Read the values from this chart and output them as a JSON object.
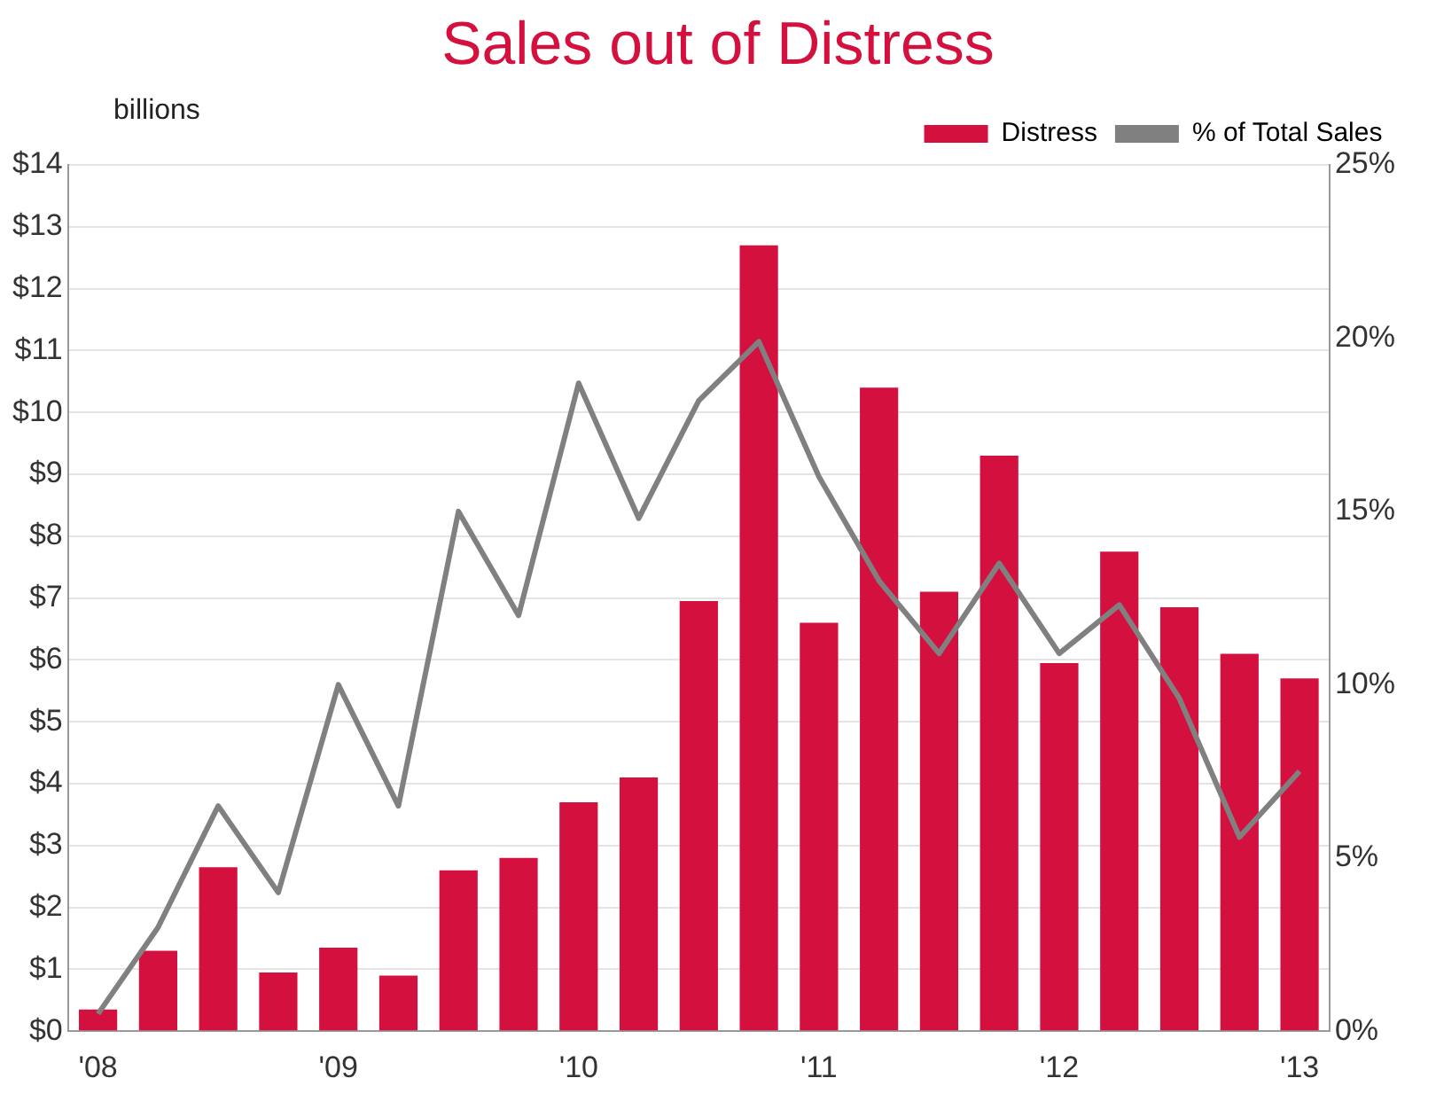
{
  "chart_data": {
    "type": "bar",
    "title": "Sales out of Distress",
    "ylabel": "billions",
    "categories": [
      "'08",
      null,
      null,
      null,
      "'09",
      null,
      null,
      null,
      "'10",
      null,
      null,
      null,
      "'11",
      null,
      null,
      null,
      "'12",
      null,
      null,
      null,
      "'13"
    ],
    "series": [
      {
        "name": "Distress",
        "color": "#d4103f",
        "values": [
          0.35,
          1.3,
          2.65,
          0.95,
          1.35,
          0.9,
          2.6,
          2.8,
          3.7,
          4.1,
          6.95,
          12.7,
          6.6,
          10.4,
          7.1,
          9.3,
          5.95,
          7.75,
          6.85,
          6.1,
          5.7
        ]
      },
      {
        "name": "% of Total Sales",
        "type": "line",
        "axis": "y2",
        "color": "#808080",
        "marker": "none",
        "values": [
          0.5,
          3,
          6.5,
          4,
          10,
          6.5,
          15,
          12,
          18.7,
          14.8,
          18.2,
          19.9,
          16,
          13,
          10.9,
          13.5,
          10.9,
          12.3,
          9.6,
          5.6,
          7.5
        ]
      }
    ],
    "ylim": [
      0,
      14
    ],
    "yticks": [
      {
        "value": 0,
        "label": "$0"
      },
      {
        "value": 1,
        "label": "$1"
      },
      {
        "value": 2,
        "label": "$2"
      },
      {
        "value": 3,
        "label": "$3"
      },
      {
        "value": 4,
        "label": "$4"
      },
      {
        "value": 5,
        "label": "$5"
      },
      {
        "value": 6,
        "label": "$6"
      },
      {
        "value": 7,
        "label": "$7"
      },
      {
        "value": 8,
        "label": "$8"
      },
      {
        "value": 9,
        "label": "$9"
      },
      {
        "value": 10,
        "label": "$10"
      },
      {
        "value": 11,
        "label": "$11"
      },
      {
        "value": 12,
        "label": "$12"
      },
      {
        "value": 13,
        "label": "$13"
      },
      {
        "value": 14,
        "label": "$14"
      }
    ],
    "y2lim": [
      0,
      25
    ],
    "y2ticks": [
      {
        "value": 0,
        "label": "0%"
      },
      {
        "value": 5,
        "label": "5%"
      },
      {
        "value": 10,
        "label": "10%"
      },
      {
        "value": 15,
        "label": "15%"
      },
      {
        "value": 20,
        "label": "20%"
      },
      {
        "value": 25,
        "label": "25%"
      }
    ],
    "grid": "y",
    "legend": "top right"
  }
}
